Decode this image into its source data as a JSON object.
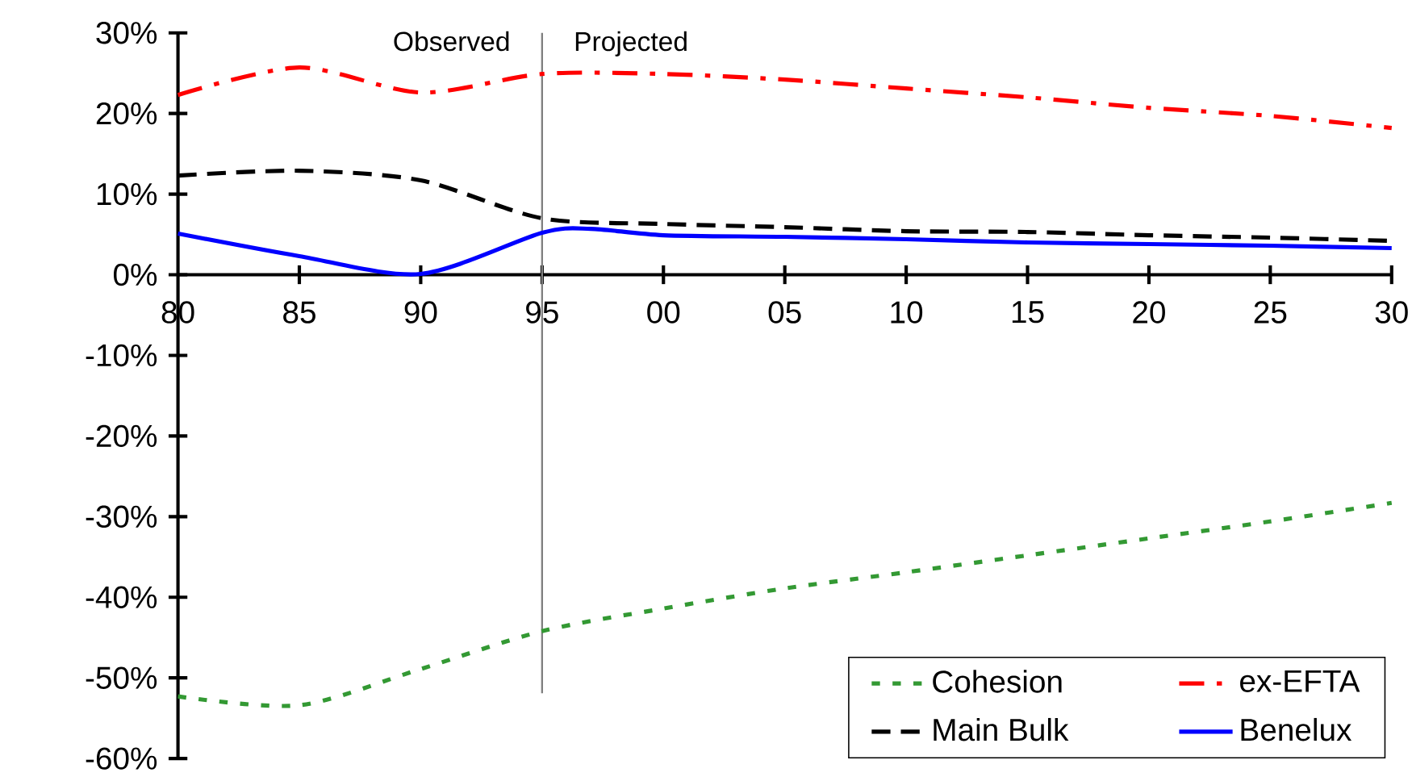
{
  "chart_data": {
    "type": "line",
    "x": [
      1980,
      1985,
      1990,
      1995,
      2000,
      2005,
      2010,
      2015,
      2020,
      2025,
      2030
    ],
    "series": [
      {
        "name": "Cohesion",
        "color": "#339933",
        "line_style": "dotted",
        "values": [
          -52.3,
          -53.4,
          -48.9,
          -44.2,
          -41.4,
          -38.9,
          -36.9,
          -34.8,
          -32.7,
          -30.6,
          -28.3
        ]
      },
      {
        "name": "ex-EFTA",
        "color": "#ff0000",
        "line_style": "dashdot",
        "values": [
          22.3,
          25.7,
          22.6,
          24.9,
          24.9,
          24.2,
          23.1,
          22.0,
          20.7,
          19.7,
          18.2
        ]
      },
      {
        "name": "Main Bulk",
        "color": "#000000",
        "line_style": "dashed",
        "values": [
          12.3,
          12.9,
          11.7,
          7.0,
          6.3,
          5.9,
          5.4,
          5.3,
          4.9,
          4.6,
          4.2
        ]
      },
      {
        "name": "Benelux",
        "color": "#0000ff",
        "line_style": "solid",
        "x": [
          1980,
          1985,
          1990,
          1995,
          1997,
          2000,
          2005,
          2010,
          2015,
          2020,
          2025,
          2030
        ],
        "values": [
          5.1,
          2.3,
          0.1,
          5.2,
          5.7,
          4.9,
          4.7,
          4.4,
          4.0,
          3.8,
          3.6,
          3.3
        ]
      }
    ],
    "xlim": [
      1980,
      2030
    ],
    "xticks": [
      {
        "value": 1980,
        "label": "80"
      },
      {
        "value": 1985,
        "label": "85"
      },
      {
        "value": 1990,
        "label": "90"
      },
      {
        "value": 1995,
        "label": "95"
      },
      {
        "value": 2000,
        "label": "00"
      },
      {
        "value": 2005,
        "label": "05"
      },
      {
        "value": 2010,
        "label": "10"
      },
      {
        "value": 2015,
        "label": "15"
      },
      {
        "value": 2020,
        "label": "20"
      },
      {
        "value": 2025,
        "label": "25"
      },
      {
        "value": 2030,
        "label": "30"
      }
    ],
    "ylim": [
      -60,
      30
    ],
    "yticks": [
      {
        "value": -60,
        "label": "-60%"
      },
      {
        "value": -50,
        "label": "-50%"
      },
      {
        "value": -40,
        "label": "-40%"
      },
      {
        "value": -30,
        "label": "-30%"
      },
      {
        "value": -20,
        "label": "-20%"
      },
      {
        "value": -10,
        "label": "-10%"
      },
      {
        "value": 0,
        "label": "0%"
      },
      {
        "value": 10,
        "label": "10%"
      },
      {
        "value": 20,
        "label": "20%"
      },
      {
        "value": 30,
        "label": "30%"
      }
    ],
    "ref_lines": [
      {
        "axis": "x",
        "value": 1995,
        "color": "#808080"
      }
    ],
    "annotations": [
      "Observed",
      "Projected"
    ],
    "legend": "bottom right"
  }
}
